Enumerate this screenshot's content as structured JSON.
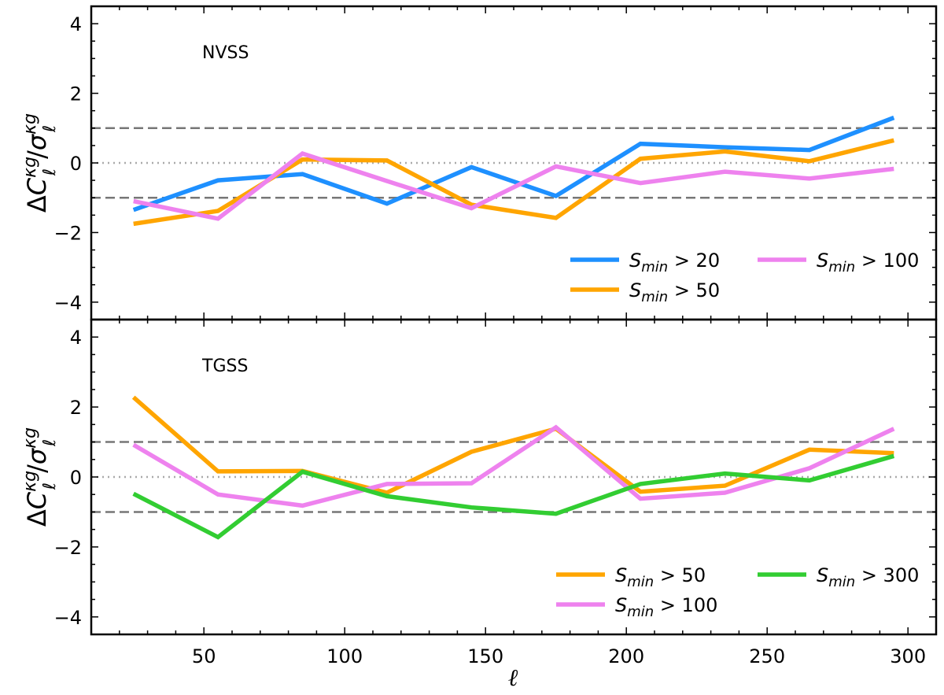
{
  "chart_data": [
    {
      "type": "line",
      "panel_label": "NVSS",
      "ylabel": "ΔCℓ^κg/σℓ^κg",
      "ylabel_parts": {
        "delta": "Δ",
        "c": "C",
        "ell": "ℓ",
        "kg": "κg",
        "slash": "/",
        "sigma": "σ"
      },
      "x": [
        25,
        55,
        85,
        115,
        145,
        175,
        205,
        235,
        265,
        295
      ],
      "xlim": [
        10,
        310
      ],
      "ylim": [
        -4.5,
        4.5
      ],
      "yticks": [
        "4",
        "2",
        "0",
        "−2",
        "−4"
      ],
      "hlines": {
        "dashed": [
          1,
          -1
        ],
        "dotted": [
          0
        ]
      },
      "legend_location": "lower right",
      "series": [
        {
          "name": "S_min > 20",
          "label_prefix": "S",
          "label_sub": "min",
          "label_suffix": " > 20",
          "color": "#1e90ff",
          "values": [
            -1.35,
            -0.5,
            -0.32,
            -1.17,
            -0.12,
            -0.95,
            0.55,
            0.45,
            0.37,
            1.3
          ]
        },
        {
          "name": "S_min > 50",
          "label_prefix": "S",
          "label_sub": "min",
          "label_suffix": " > 50",
          "color": "#ffa500",
          "values": [
            -1.75,
            -1.38,
            0.1,
            0.07,
            -1.2,
            -1.58,
            0.12,
            0.33,
            0.05,
            0.65
          ]
        },
        {
          "name": "S_min > 100",
          "label_prefix": "S",
          "label_sub": "min",
          "label_suffix": " > 100",
          "color": "#ee82ee",
          "values": [
            -1.1,
            -1.6,
            0.27,
            -0.52,
            -1.3,
            -0.1,
            -0.58,
            -0.25,
            -0.45,
            -0.17
          ]
        }
      ]
    },
    {
      "type": "line",
      "panel_label": "TGSS",
      "xlabel": "ℓ",
      "ylabel": "ΔCℓ^κg/σℓ^κg",
      "ylabel_parts": {
        "delta": "Δ",
        "c": "C",
        "ell": "ℓ",
        "kg": "κg",
        "slash": "/",
        "sigma": "σ"
      },
      "x": [
        25,
        55,
        85,
        115,
        145,
        175,
        205,
        235,
        265,
        295
      ],
      "xlim": [
        10,
        310
      ],
      "ylim": [
        -4.5,
        4.5
      ],
      "xticks": [
        "50",
        "100",
        "150",
        "200",
        "250",
        "300"
      ],
      "yticks": [
        "4",
        "2",
        "0",
        "−2",
        "−4"
      ],
      "hlines": {
        "dashed": [
          1,
          -1
        ],
        "dotted": [
          0
        ]
      },
      "legend_location": "lower right",
      "series": [
        {
          "name": "S_min > 50",
          "label_prefix": "S",
          "label_sub": "min",
          "label_suffix": " > 50",
          "color": "#ffa500",
          "values": [
            2.28,
            0.16,
            0.17,
            -0.45,
            0.72,
            1.38,
            -0.42,
            -0.25,
            0.78,
            0.68
          ]
        },
        {
          "name": "S_min > 100",
          "label_prefix": "S",
          "label_sub": "min",
          "label_suffix": " > 100",
          "color": "#ee82ee",
          "values": [
            0.92,
            -0.5,
            -0.82,
            -0.2,
            -0.18,
            1.42,
            -0.62,
            -0.45,
            0.25,
            1.38
          ]
        },
        {
          "name": "S_min > 300",
          "label_prefix": "S",
          "label_sub": "min",
          "label_suffix": " > 300",
          "color": "#32cd32",
          "values": [
            -0.48,
            -1.72,
            0.15,
            -0.55,
            -0.87,
            -1.05,
            -0.2,
            0.1,
            -0.1,
            0.6
          ]
        }
      ]
    }
  ]
}
